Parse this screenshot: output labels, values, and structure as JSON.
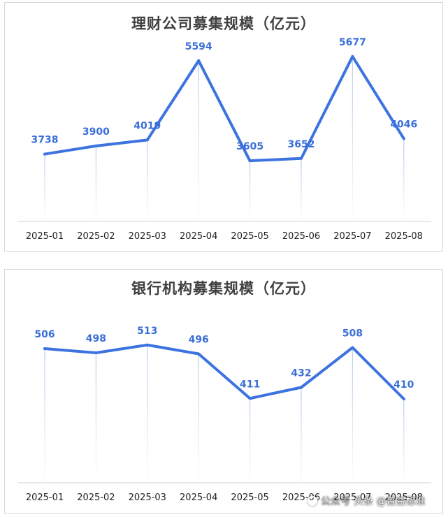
{
  "colors": {
    "line": "#3d73e0",
    "label": "#3a6fd8",
    "drop": "#b9cdea",
    "axis": "#d0d0d0",
    "tick": "#222222"
  },
  "watermark": {
    "text_faint": "公众号",
    "text": "头条 @普益标准"
  },
  "chart_data": [
    {
      "type": "line",
      "title": "理财公司募集规模（亿元）",
      "categories": [
        "2025-01",
        "2025-02",
        "2025-03",
        "2025-04",
        "2025-05",
        "2025-06",
        "2025-07",
        "2025-08"
      ],
      "series": [
        {
          "values": [
            3738,
            3900,
            4019,
            5594,
            3605,
            3652,
            5677,
            4046
          ]
        }
      ],
      "ylim": [
        0,
        5800
      ],
      "grid": false,
      "drop_lines": true
    },
    {
      "type": "line",
      "title": "银行机构募集规模（亿元）",
      "categories": [
        "2025-01",
        "2025-02",
        "2025-03",
        "2025-04",
        "2025-05",
        "2025-06",
        "2025-07",
        "2025-08"
      ],
      "series": [
        {
          "values": [
            506,
            498,
            513,
            496,
            411,
            432,
            508,
            410
          ]
        }
      ],
      "ylim": [
        0,
        530
      ],
      "grid": false,
      "drop_lines": true
    }
  ]
}
